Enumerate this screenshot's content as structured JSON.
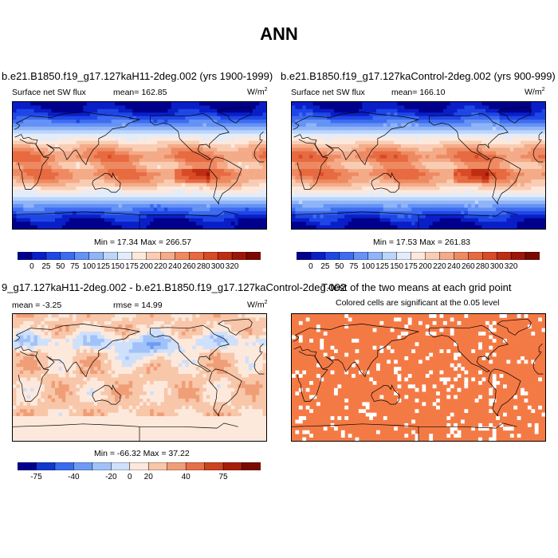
{
  "title": "ANN",
  "colors": {
    "abs_palette": [
      "#00008c",
      "#0a1fc8",
      "#1f47e6",
      "#3d6cf0",
      "#6592f5",
      "#8fb4f8",
      "#bcd5fa",
      "#e2ecfb",
      "#fde9dc",
      "#f9cdb4",
      "#f4ab88",
      "#ee8a62",
      "#e76a41",
      "#d94a26",
      "#bf2d12",
      "#9c1708",
      "#7a0a00"
    ],
    "diff_palette": [
      "#00008c",
      "#1038cf",
      "#3a6bec",
      "#6d9bf4",
      "#a1c2f8",
      "#cfe0fb",
      "#fde9dc",
      "#f8c6a9",
      "#f09e77",
      "#e5704a",
      "#cc4222",
      "#a81d08",
      "#7a0a00"
    ],
    "significance": "#f47a45"
  },
  "chart_data": [
    {
      "type": "heatmap",
      "title": "b.e21.B1850.f19_g17.127kaH11-2deg.002 (yrs 1900-1999)",
      "variable": "Surface net SW flux",
      "mean_label": "mean= 162.85",
      "units": "W/m",
      "units_sup": "2",
      "minmax": "Min =  17.34 Max = 266.57",
      "colorbar_ticks": [
        "0",
        "25",
        "50",
        "75",
        "100",
        "125",
        "150",
        "175",
        "200",
        "220",
        "240",
        "260",
        "280",
        "300",
        "320"
      ]
    },
    {
      "type": "heatmap",
      "title": "b.e21.B1850.f19_g17.127kaControl-2deg.002 (yrs 900-999)",
      "variable": "Surface net SW flux",
      "mean_label": "mean= 166.10",
      "units": "W/m",
      "units_sup": "2",
      "minmax": "Min =  17.53 Max = 261.83",
      "colorbar_ticks": [
        "0",
        "25",
        "50",
        "75",
        "100",
        "125",
        "150",
        "175",
        "200",
        "220",
        "240",
        "260",
        "280",
        "300",
        "320"
      ]
    },
    {
      "type": "heatmap",
      "title": "9_g17.127kaH11-2deg.002 - b.e21.B1850.f19_g17.127kaControl-2deg.002",
      "mean_label": "mean =  -3.25",
      "rmse_label": "rmse =  14.99",
      "units": "W/m",
      "units_sup": "2",
      "minmax": "Min = -66.32 Max =  37.22",
      "colorbar_ticks": [
        "-75",
        "-40",
        "-20",
        "0",
        "20",
        "40",
        "75"
      ]
    },
    {
      "type": "heatmap",
      "title": "T-test of the two means at each grid point",
      "subtitle": "Colored cells are significant at the 0.05 level"
    }
  ]
}
